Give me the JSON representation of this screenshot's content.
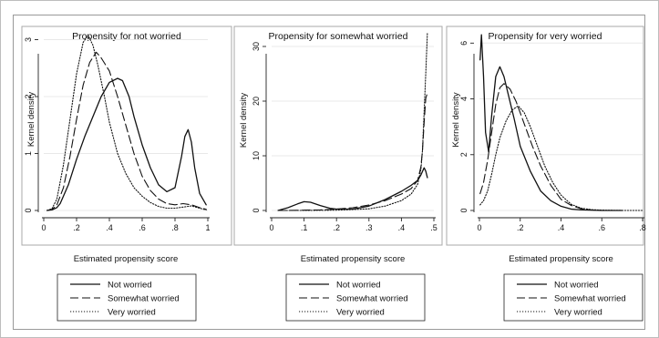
{
  "chart_data": [
    {
      "type": "line",
      "title": "Propensity for not worried",
      "xlabel": "Estimated propensity score",
      "ylabel": "Kernel density",
      "xlim": [
        0,
        1
      ],
      "ylim": [
        0,
        3.2
      ],
      "xticks": [
        0,
        0.2,
        0.4,
        0.6,
        0.8,
        1
      ],
      "xtick_labels": [
        "0",
        ".2",
        ".4",
        ".6",
        ".8",
        "1"
      ],
      "yticks": [
        0,
        1,
        2,
        3
      ],
      "ytick_labels": [
        "0",
        "1",
        "2",
        "3"
      ],
      "grid": true,
      "series": [
        {
          "name": "Not worried",
          "dash": "solid",
          "x": [
            0.02,
            0.05,
            0.08,
            0.1,
            0.15,
            0.2,
            0.25,
            0.3,
            0.35,
            0.4,
            0.45,
            0.48,
            0.52,
            0.55,
            0.6,
            0.65,
            0.7,
            0.75,
            0.8,
            0.84,
            0.86,
            0.88,
            0.9,
            0.92,
            0.95,
            0.99
          ],
          "y": [
            0,
            0.01,
            0.05,
            0.12,
            0.45,
            0.9,
            1.3,
            1.65,
            2.0,
            2.25,
            2.32,
            2.28,
            2.0,
            1.65,
            1.15,
            0.75,
            0.45,
            0.33,
            0.4,
            0.95,
            1.3,
            1.42,
            1.2,
            0.75,
            0.3,
            0.1
          ]
        },
        {
          "name": "Somewhat worried",
          "dash": "dashed",
          "x": [
            0.02,
            0.05,
            0.08,
            0.12,
            0.16,
            0.2,
            0.24,
            0.28,
            0.32,
            0.35,
            0.4,
            0.45,
            0.5,
            0.55,
            0.6,
            0.65,
            0.7,
            0.75,
            0.8,
            0.85,
            0.9,
            0.95,
            0.99
          ],
          "y": [
            0,
            0.02,
            0.1,
            0.4,
            0.95,
            1.6,
            2.2,
            2.6,
            2.78,
            2.68,
            2.45,
            2.0,
            1.5,
            1.0,
            0.6,
            0.35,
            0.2,
            0.12,
            0.1,
            0.12,
            0.1,
            0.05,
            0.02
          ]
        },
        {
          "name": "Very worried",
          "dash": "dotted",
          "x": [
            0.02,
            0.05,
            0.08,
            0.12,
            0.16,
            0.2,
            0.24,
            0.27,
            0.3,
            0.33,
            0.37,
            0.4,
            0.45,
            0.5,
            0.55,
            0.6,
            0.65,
            0.7,
            0.75,
            0.8,
            0.85,
            0.9,
            0.95,
            0.99
          ],
          "y": [
            0,
            0.03,
            0.2,
            0.8,
            1.6,
            2.4,
            2.95,
            3.08,
            2.9,
            2.55,
            2.0,
            1.55,
            1.0,
            0.65,
            0.4,
            0.25,
            0.14,
            0.07,
            0.04,
            0.04,
            0.06,
            0.08,
            0.04,
            0.01
          ]
        }
      ]
    },
    {
      "type": "line",
      "title": "Propensity for somewhat worried",
      "xlabel": "Estimated propensity score",
      "ylabel": "Kernel density",
      "xlim": [
        0,
        0.5
      ],
      "ylim": [
        0,
        33
      ],
      "xticks": [
        0,
        0.1,
        0.2,
        0.3,
        0.4,
        0.5
      ],
      "xtick_labels": [
        "0",
        ".1",
        ".2",
        ".3",
        ".4",
        ".5"
      ],
      "yticks": [
        0,
        10,
        20,
        30
      ],
      "ytick_labels": [
        "0",
        "10",
        "20",
        "30"
      ],
      "grid": true,
      "series": [
        {
          "name": "Not worried",
          "dash": "solid",
          "x": [
            0.02,
            0.05,
            0.08,
            0.1,
            0.12,
            0.15,
            0.18,
            0.2,
            0.25,
            0.3,
            0.35,
            0.4,
            0.43,
            0.45,
            0.46,
            0.47,
            0.475,
            0.48
          ],
          "y": [
            0,
            0.5,
            1.2,
            1.6,
            1.5,
            0.9,
            0.4,
            0.25,
            0.25,
            0.8,
            2.0,
            3.5,
            4.6,
            5.5,
            6.5,
            7.8,
            7.2,
            6.0
          ]
        },
        {
          "name": "Somewhat worried",
          "dash": "dashed",
          "x": [
            0.02,
            0.05,
            0.1,
            0.15,
            0.2,
            0.25,
            0.3,
            0.35,
            0.4,
            0.43,
            0.45,
            0.46,
            0.465,
            0.47,
            0.475,
            0.48
          ],
          "y": [
            0,
            0,
            0.05,
            0.1,
            0.25,
            0.5,
            1.0,
            1.8,
            3.0,
            4.0,
            5.5,
            8.0,
            11.0,
            16.0,
            20.5,
            21.5
          ]
        },
        {
          "name": "Very worried",
          "dash": "dotted",
          "x": [
            0.02,
            0.1,
            0.2,
            0.3,
            0.35,
            0.4,
            0.43,
            0.45,
            0.46,
            0.465,
            0.47,
            0.475,
            0.48
          ],
          "y": [
            0,
            0,
            0.05,
            0.3,
            0.8,
            1.8,
            3.0,
            4.8,
            7.5,
            11.0,
            18.0,
            25.0,
            32.5
          ]
        }
      ]
    },
    {
      "type": "line",
      "title": "Propensity for very worried",
      "xlabel": "Estimated propensity score",
      "ylabel": "Kernel density",
      "xlim": [
        0,
        0.8
      ],
      "ylim": [
        0,
        6.5
      ],
      "xticks": [
        0,
        0.2,
        0.4,
        0.6,
        0.8
      ],
      "xtick_labels": [
        "0",
        ".2",
        ".4",
        ".6",
        ".8"
      ],
      "yticks": [
        0,
        2,
        4,
        6
      ],
      "ytick_labels": [
        "0",
        "2",
        "4",
        "6"
      ],
      "grid": true,
      "series": [
        {
          "name": "Not worried",
          "dash": "solid",
          "x": [
            0.003,
            0.01,
            0.02,
            0.03,
            0.045,
            0.06,
            0.08,
            0.1,
            0.12,
            0.14,
            0.17,
            0.2,
            0.25,
            0.3,
            0.35,
            0.4,
            0.45,
            0.5,
            0.6,
            0.7
          ],
          "y": [
            5.4,
            6.3,
            4.8,
            2.8,
            2.1,
            3.4,
            4.8,
            5.15,
            4.8,
            4.2,
            3.3,
            2.3,
            1.4,
            0.7,
            0.35,
            0.15,
            0.05,
            0.02,
            0,
            0
          ]
        },
        {
          "name": "Somewhat worried",
          "dash": "dashed",
          "x": [
            0.003,
            0.02,
            0.04,
            0.06,
            0.08,
            0.1,
            0.12,
            0.15,
            0.18,
            0.22,
            0.26,
            0.3,
            0.35,
            0.4,
            0.45,
            0.5,
            0.55,
            0.6,
            0.7
          ],
          "y": [
            0.6,
            1.0,
            1.8,
            2.8,
            3.8,
            4.4,
            4.55,
            4.35,
            3.9,
            3.1,
            2.3,
            1.6,
            0.9,
            0.4,
            0.18,
            0.06,
            0.02,
            0,
            0
          ]
        },
        {
          "name": "Very worried",
          "dash": "dotted",
          "x": [
            0.003,
            0.02,
            0.04,
            0.06,
            0.08,
            0.1,
            0.13,
            0.16,
            0.19,
            0.22,
            0.25,
            0.28,
            0.32,
            0.36,
            0.4,
            0.45,
            0.5,
            0.55,
            0.6,
            0.7,
            0.8
          ],
          "y": [
            0.2,
            0.35,
            0.7,
            1.3,
            2.0,
            2.6,
            3.2,
            3.6,
            3.75,
            3.5,
            3.0,
            2.4,
            1.6,
            1.0,
            0.55,
            0.22,
            0.08,
            0.03,
            0.01,
            0,
            0
          ]
        }
      ]
    }
  ],
  "legend": {
    "placement": "bottom",
    "items": [
      {
        "label": "Not worried",
        "dash": "solid"
      },
      {
        "label": "Somewhat worried",
        "dash": "dashed"
      },
      {
        "label": "Very worried",
        "dash": "dotted"
      }
    ]
  }
}
